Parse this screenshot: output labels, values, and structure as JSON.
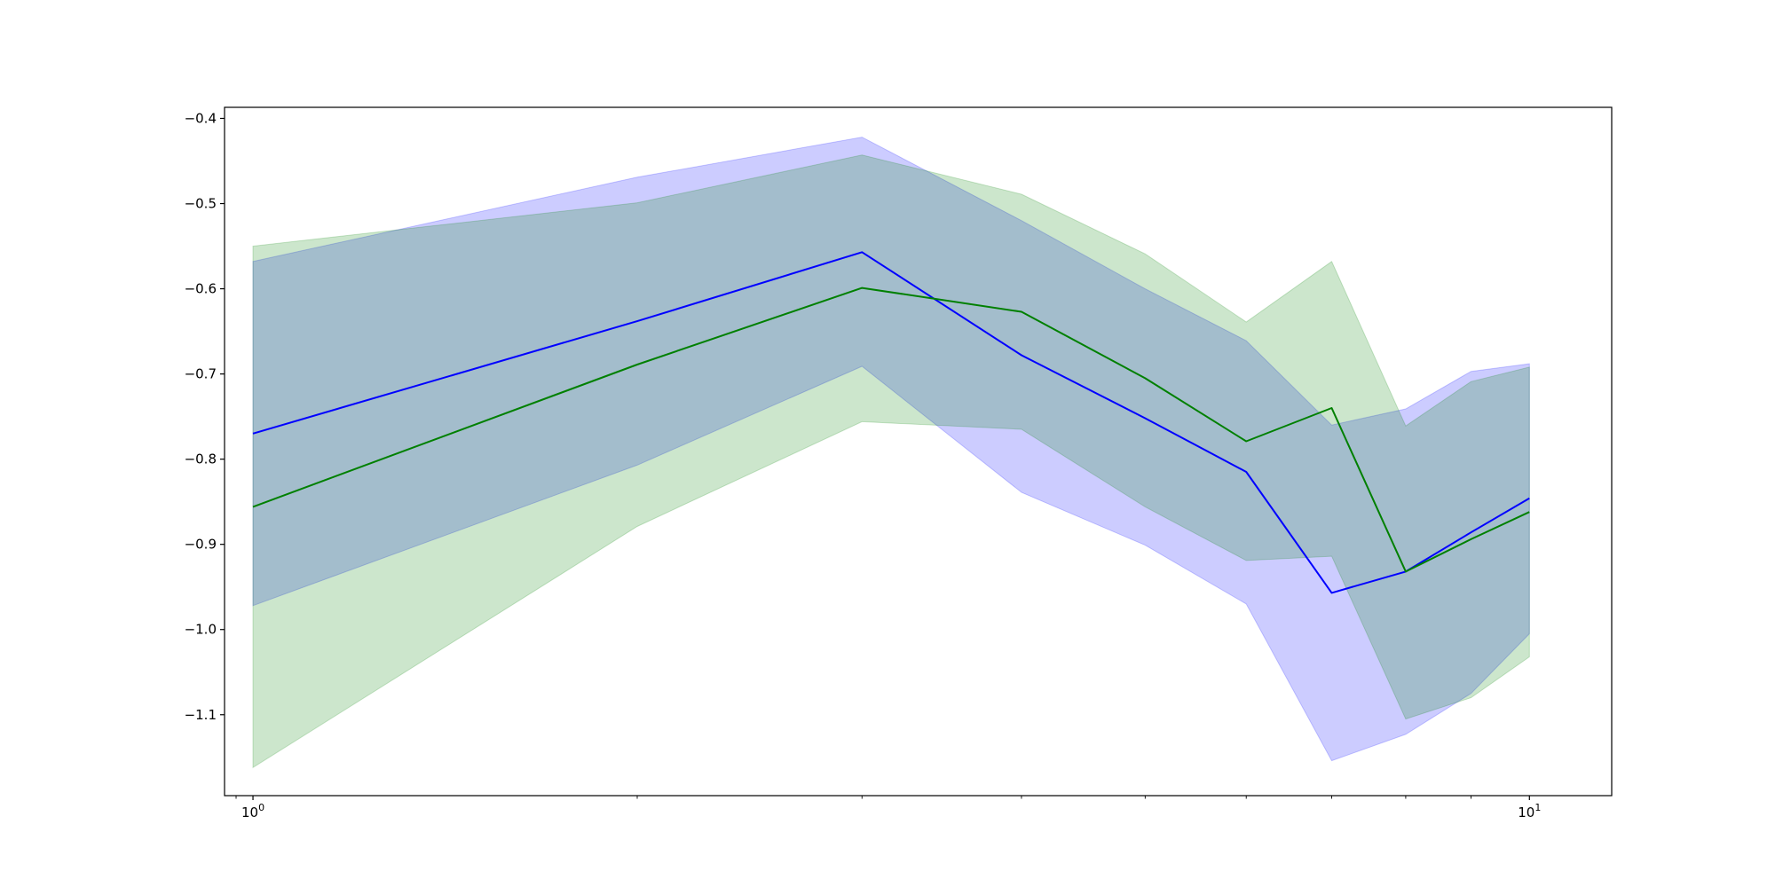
{
  "chart_data": {
    "type": "line",
    "xscale": "log",
    "xlim": [
      0.95,
      11.6
    ],
    "ylim": [
      -1.195,
      -0.387
    ],
    "x": [
      1,
      2,
      3,
      4,
      5,
      6,
      7,
      8,
      9,
      10
    ],
    "xticks": [
      {
        "value": 1,
        "base": "10",
        "exp": "0"
      },
      {
        "value": 10,
        "base": "10",
        "exp": "1"
      }
    ],
    "minor_xticks": [
      0.97,
      2,
      3,
      4,
      5,
      6,
      7,
      8,
      9
    ],
    "yticks": [
      {
        "value": -0.4,
        "label": "−0.4"
      },
      {
        "value": -0.5,
        "label": "−0.5"
      },
      {
        "value": -0.6,
        "label": "−0.6"
      },
      {
        "value": -0.7,
        "label": "−0.7"
      },
      {
        "value": -0.8,
        "label": "−0.8"
      },
      {
        "value": -0.9,
        "label": "−0.9"
      },
      {
        "value": -1.0,
        "label": "−1.0"
      },
      {
        "value": -1.1,
        "label": "−1.1"
      }
    ],
    "grid": false,
    "series": [
      {
        "key": "blue",
        "color": "#0000ff",
        "band_color": "#0000ff",
        "band_opacity": 0.2,
        "values": [
          -0.77,
          -0.638,
          -0.557,
          -0.678,
          -0.752,
          -0.815,
          -0.957,
          -0.932,
          -0.886,
          -0.846
        ],
        "upper": [
          -0.568,
          -0.469,
          -0.422,
          -0.52,
          -0.6,
          -0.661,
          -0.76,
          -0.741,
          -0.697,
          -0.688
        ],
        "lower": [
          -0.972,
          -0.807,
          -0.691,
          -0.839,
          -0.901,
          -0.97,
          -1.154,
          -1.123,
          -1.075,
          -1.005
        ]
      },
      {
        "key": "green",
        "color": "#008000",
        "band_color": "#008000",
        "band_opacity": 0.2,
        "values": [
          -0.856,
          -0.689,
          -0.599,
          -0.627,
          -0.705,
          -0.779,
          -0.74,
          -0.932,
          -0.894,
          -0.862
        ],
        "upper": [
          -0.55,
          -0.499,
          -0.443,
          -0.489,
          -0.559,
          -0.639,
          -0.568,
          -0.761,
          -0.709,
          -0.692
        ],
        "lower": [
          -1.162,
          -0.879,
          -0.756,
          -0.765,
          -0.856,
          -0.919,
          -0.914,
          -1.105,
          -1.08,
          -1.032
        ]
      }
    ]
  }
}
